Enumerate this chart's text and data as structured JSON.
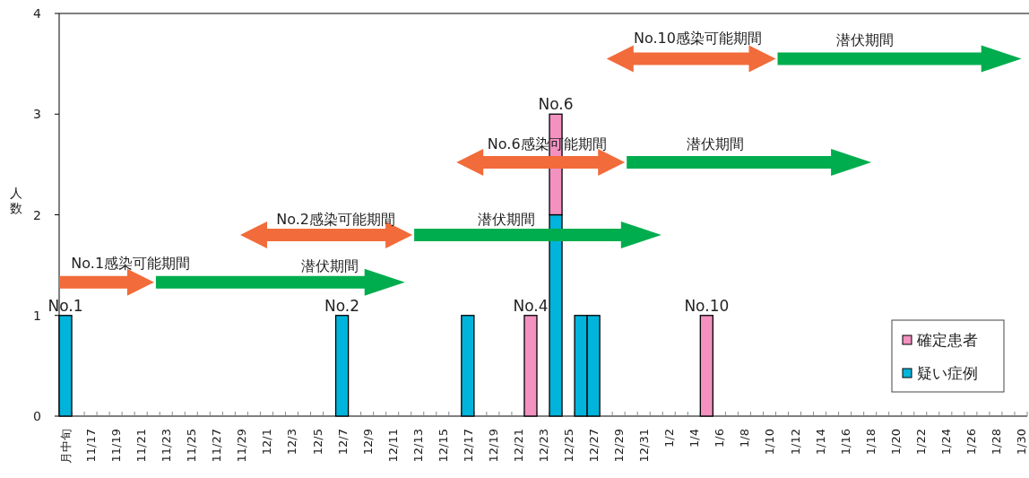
{
  "chart_data": {
    "type": "bar",
    "stacked": true,
    "ylabel": "人数",
    "ylim": [
      0,
      4
    ],
    "yticks": [
      0,
      1,
      2,
      3,
      4
    ],
    "legend": "bottom right",
    "categories": [
      "月中旬",
      null,
      "11/17",
      null,
      "11/19",
      null,
      "11/21",
      null,
      "11/23",
      null,
      "11/25",
      null,
      "11/27",
      null,
      "11/29",
      null,
      "12/1",
      null,
      "12/3",
      null,
      "12/5",
      null,
      "12/7",
      null,
      "12/9",
      null,
      "12/11",
      null,
      "12/13",
      null,
      "12/15",
      null,
      "12/17",
      null,
      "12/19",
      null,
      "12/21",
      null,
      "12/23",
      null,
      "12/25",
      null,
      "12/27",
      null,
      "12/29",
      null,
      "12/31",
      null,
      "1/2",
      null,
      "1/4",
      null,
      "1/6",
      null,
      "1/8",
      null,
      "1/10",
      null,
      "1/12",
      null,
      "1/14",
      null,
      "1/16",
      null,
      "1/18",
      null,
      "1/20",
      null,
      "1/22",
      null,
      "1/24",
      null,
      "1/26",
      null,
      "1/28",
      null,
      "1/30"
    ],
    "series": [
      {
        "name": "疑い症例",
        "color": "#00b4dc",
        "values": [
          1,
          null,
          null,
          null,
          null,
          null,
          null,
          null,
          null,
          null,
          null,
          null,
          null,
          null,
          null,
          null,
          null,
          null,
          null,
          null,
          null,
          null,
          1,
          null,
          null,
          null,
          null,
          null,
          null,
          null,
          null,
          null,
          1,
          null,
          null,
          null,
          null,
          null,
          null,
          2,
          null,
          1,
          1,
          null,
          null,
          null,
          null,
          null,
          null,
          null,
          null,
          null,
          null,
          null,
          null,
          null,
          null,
          null,
          null,
          null,
          null,
          null,
          null,
          null,
          null,
          null,
          null,
          null,
          null,
          null,
          null,
          null,
          null,
          null,
          null,
          null,
          null
        ],
        "value_labels": [
          "No.1",
          null,
          null,
          null,
          null,
          null,
          null,
          null,
          null,
          null,
          null,
          null,
          null,
          null,
          null,
          null,
          null,
          null,
          null,
          null,
          null,
          null,
          "No.2",
          null,
          null,
          null,
          null,
          null,
          null,
          null,
          null,
          null,
          null,
          null,
          null,
          null,
          null,
          null,
          null,
          null,
          null,
          null,
          null,
          null,
          null,
          null,
          null,
          null,
          null,
          null,
          null,
          null,
          null,
          null,
          null,
          null,
          null,
          null,
          null,
          null,
          null,
          null,
          null,
          null,
          null,
          null,
          null,
          null,
          null,
          null,
          null,
          null,
          null,
          null,
          null,
          null,
          null
        ]
      },
      {
        "name": "確定患者",
        "color": "#f391c0",
        "values": [
          null,
          null,
          null,
          null,
          null,
          null,
          null,
          null,
          null,
          null,
          null,
          null,
          null,
          null,
          null,
          null,
          null,
          null,
          null,
          null,
          null,
          null,
          null,
          null,
          null,
          null,
          null,
          null,
          null,
          null,
          null,
          null,
          null,
          null,
          null,
          null,
          null,
          1,
          null,
          1,
          null,
          null,
          null,
          null,
          null,
          null,
          null,
          null,
          null,
          null,
          null,
          1,
          null,
          null,
          null,
          null,
          null,
          null,
          null,
          null,
          null,
          null,
          null,
          null,
          null,
          null,
          null,
          null,
          null,
          null,
          null,
          null,
          null,
          null,
          null,
          null,
          null
        ],
        "value_labels": [
          null,
          null,
          null,
          null,
          null,
          null,
          null,
          null,
          null,
          null,
          null,
          null,
          null,
          null,
          null,
          null,
          null,
          null,
          null,
          null,
          null,
          null,
          null,
          null,
          null,
          null,
          null,
          null,
          null,
          null,
          null,
          null,
          null,
          null,
          null,
          null,
          null,
          "No.4",
          null,
          "No.6",
          null,
          null,
          null,
          null,
          null,
          null,
          null,
          null,
          null,
          null,
          null,
          "No.10",
          null,
          null,
          null,
          null,
          null,
          null,
          null,
          null,
          null,
          null,
          null,
          null,
          null,
          null,
          null,
          null,
          null,
          null,
          null,
          null,
          null,
          null,
          null,
          null,
          null
        ]
      }
    ],
    "annotations": [
      "No.1感染可能期間",
      "潜伏期間",
      "No.2感染可能期間",
      "潜伏期間",
      "No.6感染可能期間",
      "潜伏期間",
      "No.10感染可能期間",
      "潜伏期間"
    ]
  }
}
